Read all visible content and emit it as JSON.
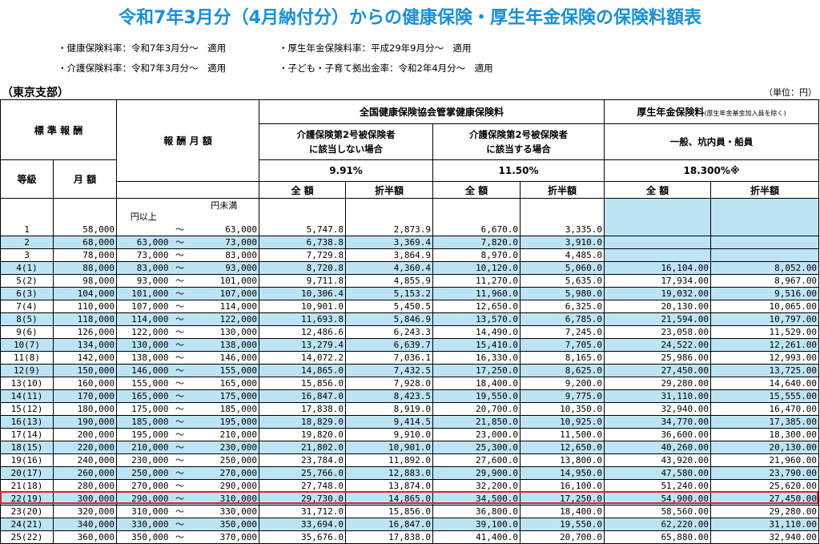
{
  "title": "令和7年3月分（4月納付分）からの健康保険・厚生年金保険の保険料額表",
  "notes": {
    "health_rate": "・健康保険料率：令和7年3月分～　適用",
    "care_rate": "・介護保険料率：令和7年3月分～　適用",
    "pension_rate": "・厚生年金保険料率：平成29年9月分～　適用",
    "child_rate": "・子ども・子育て拠出金率：令和2年4月分～　適用"
  },
  "branch": "（東京支部）",
  "unit": "（単位：円）",
  "headers": {
    "standard": "標 準 報 酬",
    "grade": "等級",
    "monthly": "月 額",
    "remuneration": "報 酬 月 額",
    "kyokai": "全国健康保険協会管掌健康保険料",
    "pension": "厚生年金保険料",
    "pension_note": "(厚生年金基金加入員を除く)",
    "no_care_l1": "介護保険第2号被保険者",
    "no_care_l2": "に該当しない場合",
    "care_l1": "介護保険第2号被保険者",
    "care_l2": "に該当する場合",
    "pension_type": "一般、坑内員・船員",
    "rate_no_care": "9.91%",
    "rate_care": "11.50%",
    "rate_pension": "18.300%※",
    "full": "全 額",
    "half": "折半額"
  },
  "range_labels": {
    "from": "円以上",
    "to": "円未満",
    "tilde": "～"
  },
  "rows": [
    {
      "grade": "1",
      "monthly": "58,000",
      "from": "",
      "to": "63,000",
      "h_full": "5,747.8",
      "h_half": "2,873.9",
      "c_full": "6,670.0",
      "c_half": "3,335.0",
      "p_full": "",
      "p_half": "",
      "blue": false
    },
    {
      "grade": "2",
      "monthly": "68,000",
      "from": "63,000",
      "to": "73,000",
      "h_full": "6,738.8",
      "h_half": "3,369.4",
      "c_full": "7,820.0",
      "c_half": "3,910.0",
      "p_full": "",
      "p_half": "",
      "blue": true
    },
    {
      "grade": "3",
      "monthly": "78,000",
      "from": "73,000",
      "to": "83,000",
      "h_full": "7,729.8",
      "h_half": "3,864.9",
      "c_full": "8,970.0",
      "c_half": "4,485.0",
      "p_full": "",
      "p_half": "",
      "blue": false
    },
    {
      "grade": "4(1)",
      "monthly": "88,000",
      "from": "83,000",
      "to": "93,000",
      "h_full": "8,720.8",
      "h_half": "4,360.4",
      "c_full": "10,120.0",
      "c_half": "5,060.0",
      "p_full": "16,104.00",
      "p_half": "8,052.00",
      "blue": true
    },
    {
      "grade": "5(2)",
      "monthly": "98,000",
      "from": "93,000",
      "to": "101,000",
      "h_full": "9,711.8",
      "h_half": "4,855.9",
      "c_full": "11,270.0",
      "c_half": "5,635.0",
      "p_full": "17,934.00",
      "p_half": "8,967.00",
      "blue": false
    },
    {
      "grade": "6(3)",
      "monthly": "104,000",
      "from": "101,000",
      "to": "107,000",
      "h_full": "10,306.4",
      "h_half": "5,153.2",
      "c_full": "11,960.0",
      "c_half": "5,980.0",
      "p_full": "19,032.00",
      "p_half": "9,516.00",
      "blue": true
    },
    {
      "grade": "7(4)",
      "monthly": "110,000",
      "from": "107,000",
      "to": "114,000",
      "h_full": "10,901.0",
      "h_half": "5,450.5",
      "c_full": "12,650.0",
      "c_half": "6,325.0",
      "p_full": "20,130.00",
      "p_half": "10,065.00",
      "blue": false
    },
    {
      "grade": "8(5)",
      "monthly": "118,000",
      "from": "114,000",
      "to": "122,000",
      "h_full": "11,693.8",
      "h_half": "5,846.9",
      "c_full": "13,570.0",
      "c_half": "6,785.0",
      "p_full": "21,594.00",
      "p_half": "10,797.00",
      "blue": true
    },
    {
      "grade": "9(6)",
      "monthly": "126,000",
      "from": "122,000",
      "to": "130,000",
      "h_full": "12,486.6",
      "h_half": "6,243.3",
      "c_full": "14,490.0",
      "c_half": "7,245.0",
      "p_full": "23,058.00",
      "p_half": "11,529.00",
      "blue": false
    },
    {
      "grade": "10(7)",
      "monthly": "134,000",
      "from": "130,000",
      "to": "138,000",
      "h_full": "13,279.4",
      "h_half": "6,639.7",
      "c_full": "15,410.0",
      "c_half": "7,705.0",
      "p_full": "24,522.00",
      "p_half": "12,261.00",
      "blue": true
    },
    {
      "grade": "11(8)",
      "monthly": "142,000",
      "from": "138,000",
      "to": "146,000",
      "h_full": "14,072.2",
      "h_half": "7,036.1",
      "c_full": "16,330.0",
      "c_half": "8,165.0",
      "p_full": "25,986.00",
      "p_half": "12,993.00",
      "blue": false
    },
    {
      "grade": "12(9)",
      "monthly": "150,000",
      "from": "146,000",
      "to": "155,000",
      "h_full": "14,865.0",
      "h_half": "7,432.5",
      "c_full": "17,250.0",
      "c_half": "8,625.0",
      "p_full": "27,450.00",
      "p_half": "13,725.00",
      "blue": true
    },
    {
      "grade": "13(10)",
      "monthly": "160,000",
      "from": "155,000",
      "to": "165,000",
      "h_full": "15,856.0",
      "h_half": "7,928.0",
      "c_full": "18,400.0",
      "c_half": "9,200.0",
      "p_full": "29,280.00",
      "p_half": "14,640.00",
      "blue": false
    },
    {
      "grade": "14(11)",
      "monthly": "170,000",
      "from": "165,000",
      "to": "175,000",
      "h_full": "16,847.0",
      "h_half": "8,423.5",
      "c_full": "19,550.0",
      "c_half": "9,775.0",
      "p_full": "31,110.00",
      "p_half": "15,555.00",
      "blue": true
    },
    {
      "grade": "15(12)",
      "monthly": "180,000",
      "from": "175,000",
      "to": "185,000",
      "h_full": "17,838.0",
      "h_half": "8,919.0",
      "c_full": "20,700.0",
      "c_half": "10,350.0",
      "p_full": "32,940.00",
      "p_half": "16,470.00",
      "blue": false
    },
    {
      "grade": "16(13)",
      "monthly": "190,000",
      "from": "185,000",
      "to": "195,000",
      "h_full": "18,829.0",
      "h_half": "9,414.5",
      "c_full": "21,850.0",
      "c_half": "10,925.0",
      "p_full": "34,770.00",
      "p_half": "17,385.00",
      "blue": true
    },
    {
      "grade": "17(14)",
      "monthly": "200,000",
      "from": "195,000",
      "to": "210,000",
      "h_full": "19,820.0",
      "h_half": "9,910.0",
      "c_full": "23,000.0",
      "c_half": "11,500.0",
      "p_full": "36,600.00",
      "p_half": "18,300.00",
      "blue": false
    },
    {
      "grade": "18(15)",
      "monthly": "220,000",
      "from": "210,000",
      "to": "230,000",
      "h_full": "21,802.0",
      "h_half": "10,901.0",
      "c_full": "25,300.0",
      "c_half": "12,650.0",
      "p_full": "40,260.00",
      "p_half": "20,130.00",
      "blue": true
    },
    {
      "grade": "19(16)",
      "monthly": "240,000",
      "from": "230,000",
      "to": "250,000",
      "h_full": "23,784.0",
      "h_half": "11,892.0",
      "c_full": "27,600.0",
      "c_half": "13,800.0",
      "p_full": "43,920.00",
      "p_half": "21,960.00",
      "blue": false
    },
    {
      "grade": "20(17)",
      "monthly": "260,000",
      "from": "250,000",
      "to": "270,000",
      "h_full": "25,766.0",
      "h_half": "12,883.0",
      "c_full": "29,900.0",
      "c_half": "14,950.0",
      "p_full": "47,580.00",
      "p_half": "23,790.00",
      "blue": true
    },
    {
      "grade": "21(18)",
      "monthly": "280,000",
      "from": "270,000",
      "to": "290,000",
      "h_full": "27,748.0",
      "h_half": "13,874.0",
      "c_full": "32,200.0",
      "c_half": "16,100.0",
      "p_full": "51,240.00",
      "p_half": "25,620.00",
      "blue": false
    },
    {
      "grade": "22(19)",
      "monthly": "300,000",
      "from": "290,000",
      "to": "310,000",
      "h_full": "29,730.0",
      "h_half": "14,865.0",
      "c_full": "34,500.0",
      "c_half": "17,250.0",
      "p_full": "54,900.00",
      "p_half": "27,450.00",
      "blue": true
    },
    {
      "grade": "23(20)",
      "monthly": "320,000",
      "from": "310,000",
      "to": "330,000",
      "h_full": "31,712.0",
      "h_half": "15,856.0",
      "c_full": "36,800.0",
      "c_half": "18,400.0",
      "p_full": "58,560.00",
      "p_half": "29,280.00",
      "blue": false
    },
    {
      "grade": "24(21)",
      "monthly": "340,000",
      "from": "330,000",
      "to": "350,000",
      "h_full": "33,694.0",
      "h_half": "16,847.0",
      "c_full": "39,100.0",
      "c_half": "19,550.0",
      "p_full": "62,220.00",
      "p_half": "31,110.00",
      "blue": true
    },
    {
      "grade": "25(22)",
      "monthly": "360,000",
      "from": "350,000",
      "to": "370,000",
      "h_full": "35,676.0",
      "h_half": "17,838.0",
      "c_full": "41,400.0",
      "c_half": "20,700.0",
      "p_full": "65,880.00",
      "p_half": "32,940.00",
      "blue": false
    }
  ]
}
